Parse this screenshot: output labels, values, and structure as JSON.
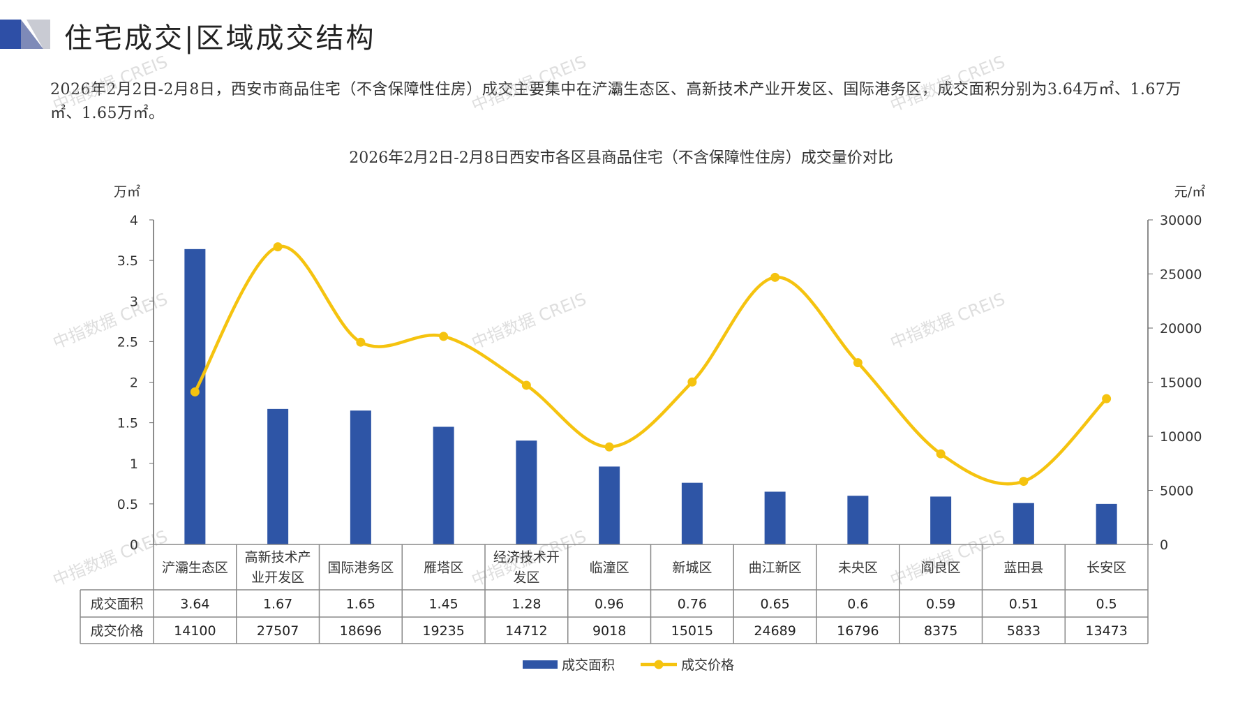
{
  "header": {
    "title": "住宅成交|区域成交结构"
  },
  "summary": "2026年2月2日-2月8日，西安市商品住宅（不含保障性住房）成交主要集中在浐灞生态区、高新技术产业开发区、国际港务区，成交面积分别为3.64万㎡、1.67万㎡、1.65万㎡。",
  "watermark": "中指数据 CREIS",
  "colors": {
    "bar": "#2E55A6",
    "line": "#F5C30F",
    "grid": "#666666"
  },
  "chart_data": {
    "type": "bar+line",
    "title": "2026年2月2日-2月8日西安市各区县商品住宅（不含保障性住房）成交量价对比",
    "categories": [
      "浐灞生态区",
      "高新技术产业开发区",
      "国际港务区",
      "雁塔区",
      "经济技术开发区",
      "临潼区",
      "新城区",
      "曲江新区",
      "未央区",
      "阎良区",
      "蓝田县",
      "长安区"
    ],
    "category_lines": [
      [
        "浐灞生态区"
      ],
      [
        "高新技术产",
        "业开发区"
      ],
      [
        "国际港务区"
      ],
      [
        "雁塔区"
      ],
      [
        "经济技术开",
        "发区"
      ],
      [
        "临潼区"
      ],
      [
        "新城区"
      ],
      [
        "曲江新区"
      ],
      [
        "未央区"
      ],
      [
        "阎良区"
      ],
      [
        "蓝田县"
      ],
      [
        "长安区"
      ]
    ],
    "series": [
      {
        "name": "成交面积",
        "type": "bar",
        "axis": "left",
        "values": [
          3.64,
          1.67,
          1.65,
          1.45,
          1.28,
          0.96,
          0.76,
          0.65,
          0.6,
          0.59,
          0.51,
          0.5
        ]
      },
      {
        "name": "成交价格",
        "type": "line",
        "axis": "right",
        "values": [
          14100,
          27507,
          18696,
          19235,
          14712,
          9018,
          15015,
          24689,
          16796,
          8375,
          5833,
          13473
        ]
      }
    ],
    "table_values": [
      [
        "3.64",
        "1.67",
        "1.65",
        "1.45",
        "1.28",
        "0.96",
        "0.76",
        "0.65",
        "0.6",
        "0.59",
        "0.51",
        "0.5"
      ],
      [
        "14100",
        "27507",
        "18696",
        "19235",
        "14712",
        "9018",
        "15015",
        "24689",
        "16796",
        "8375",
        "5833",
        "13473"
      ]
    ],
    "left_axis": {
      "unit": "万㎡",
      "ylim": [
        0,
        4
      ],
      "ticks": [
        "0",
        "0.5",
        "1",
        "1.5",
        "2",
        "2.5",
        "3",
        "3.5",
        "4"
      ]
    },
    "right_axis": {
      "unit": "元/㎡",
      "ylim": [
        0,
        30000
      ],
      "ticks": [
        "0",
        "5000",
        "10000",
        "15000",
        "20000",
        "25000",
        "30000"
      ]
    },
    "legend": {
      "position": "bottom",
      "items": [
        "成交面积",
        "成交价格"
      ]
    }
  }
}
